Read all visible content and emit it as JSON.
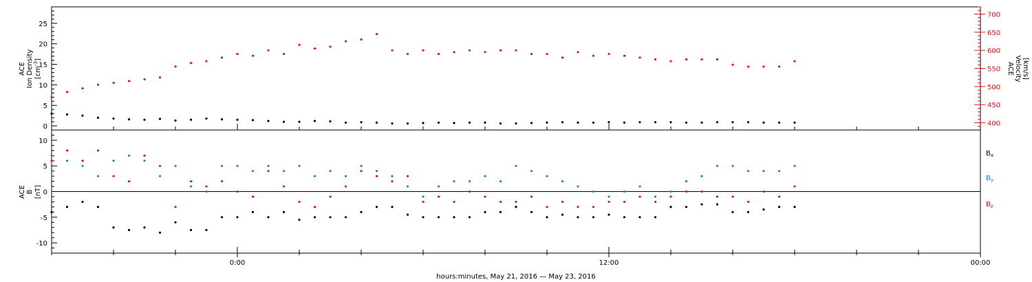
{
  "chart_data": [
    {
      "type": "scatter",
      "panel": "ace-density-velocity",
      "ylabel": [
        "ACE",
        "Ion Density",
        "[cm",
        "]"
      ],
      "ylabel_superscript": "-3",
      "y2label": [
        "ACE",
        "Velocity",
        "[km/s]"
      ],
      "ylim": [
        -1,
        29
      ],
      "y2lim": [
        380,
        720
      ],
      "y_ticks": [
        0,
        5,
        10,
        15,
        20,
        25
      ],
      "y2_ticks": [
        400,
        450,
        500,
        550,
        600,
        650,
        700
      ],
      "series": [
        {
          "axis": "left",
          "color": "#000000",
          "x_hours": [
            -6.0,
            -5.5,
            -5.0,
            -4.5,
            -4.0,
            -3.5,
            -3.0,
            -2.5,
            -2.0,
            -1.5,
            -1.0,
            -0.5,
            0.0,
            0.5,
            1.0,
            1.5,
            2.0,
            2.5,
            3.0,
            3.5,
            4.0,
            4.5,
            5.0,
            5.5,
            6.0,
            6.5,
            7.0,
            7.5,
            8.0,
            8.5,
            9.0,
            9.5,
            10.0,
            10.5,
            11.0,
            11.5,
            12.0,
            12.5,
            13.0,
            13.5,
            14.0,
            14.5,
            15.0,
            15.5,
            16.0,
            16.5,
            17.0,
            17.5,
            18.0
          ],
          "values": [
            3.0,
            2.8,
            2.5,
            2.0,
            1.8,
            1.6,
            1.5,
            1.7,
            1.3,
            1.5,
            1.8,
            1.6,
            1.5,
            1.4,
            1.2,
            1.0,
            1.0,
            1.2,
            1.1,
            0.8,
            0.9,
            0.8,
            0.6,
            0.6,
            0.7,
            0.8,
            0.7,
            0.8,
            0.8,
            0.6,
            0.6,
            0.7,
            0.8,
            0.9,
            0.8,
            0.8,
            0.9,
            0.8,
            0.9,
            0.9,
            0.9,
            0.8,
            0.8,
            0.9,
            0.9,
            0.9,
            0.8,
            0.8,
            0.8
          ]
        },
        {
          "axis": "right",
          "color": "#e8161c",
          "x_hours": [
            -6.0,
            -5.5,
            -5.0,
            -4.5,
            -4.0,
            -3.5,
            -3.0,
            -2.5,
            -2.0,
            -1.5,
            -1.0,
            -0.5,
            0.0,
            0.5,
            1.0,
            1.5,
            2.0,
            2.5,
            3.0,
            3.5,
            4.0,
            4.5,
            5.0,
            5.5,
            6.0,
            6.5,
            7.0,
            7.5,
            8.0,
            8.5,
            9.0,
            9.5,
            10.0,
            10.5,
            11.0,
            11.5,
            12.0,
            12.5,
            13.0,
            13.5,
            14.0,
            14.5,
            15.0,
            15.5,
            16.0,
            16.5,
            17.0,
            17.5,
            18.0
          ],
          "values": [
            470,
            485,
            495,
            505,
            510,
            515,
            520,
            525,
            555,
            565,
            570,
            580,
            590,
            585,
            600,
            590,
            615,
            605,
            610,
            625,
            630,
            645,
            600,
            590,
            600,
            590,
            595,
            600,
            595,
            600,
            600,
            590,
            590,
            580,
            595,
            585,
            590,
            585,
            580,
            575,
            570,
            575,
            575,
            575,
            560,
            555,
            555,
            555,
            570
          ]
        }
      ]
    },
    {
      "type": "scatter",
      "panel": "ace-b-field",
      "ylabel": [
        "ACE",
        "B",
        "[nT]"
      ],
      "ylim": [
        -12,
        12
      ],
      "y_ticks": [
        -10,
        -5,
        0,
        5,
        10
      ],
      "zero_line": 0,
      "series": [
        {
          "name": "Bx",
          "color": "#000000",
          "x_hours": [
            -6.0,
            -5.5,
            -5.0,
            -4.5,
            -4.0,
            -3.5,
            -3.0,
            -2.5,
            -2.0,
            -1.5,
            -1.0,
            -0.5,
            0.0,
            0.5,
            1.0,
            1.5,
            2.0,
            2.5,
            3.0,
            3.5,
            4.0,
            4.5,
            5.0,
            5.5,
            6.0,
            6.5,
            7.0,
            7.5,
            8.0,
            8.5,
            9.0,
            9.5,
            10.0,
            10.5,
            11.0,
            11.5,
            12.0,
            12.5,
            13.0,
            13.5,
            14.0,
            14.5,
            15.0,
            15.5,
            16.0,
            16.5,
            17.0,
            17.5,
            18.0
          ],
          "values": [
            -4,
            -3,
            -2,
            -3,
            -7,
            -7.5,
            -7,
            -8,
            -6,
            -7.5,
            -7.5,
            -5,
            -5,
            -4,
            -5,
            -4,
            -5.5,
            -5,
            -5,
            -5,
            -4,
            -3,
            -3,
            -4.5,
            -5,
            -5,
            -5,
            -5,
            -4,
            -4,
            -3,
            -4,
            -5,
            -4.5,
            -5,
            -5,
            -4.5,
            -5,
            -5,
            -5,
            -3,
            -3,
            -2.5,
            -2.5,
            -4,
            -4,
            -3.5,
            -3,
            -3
          ]
        },
        {
          "name": "By",
          "color": "#1a85db",
          "x_hours": [
            -6.0,
            -5.5,
            -5.0,
            -4.5,
            -4.0,
            -3.5,
            -3.0,
            -2.5,
            -2.0,
            -1.5,
            -1.0,
            -0.5,
            0.0,
            0.5,
            1.0,
            1.5,
            2.0,
            2.5,
            3.0,
            3.5,
            4.0,
            4.5,
            5.0,
            5.5,
            6.0,
            6.5,
            7.0,
            7.5,
            8.0,
            8.5,
            9.0,
            9.5,
            10.0,
            10.5,
            11.0,
            11.5,
            12.0,
            12.5,
            13.0,
            13.5,
            14.0,
            14.5,
            15.0,
            15.5,
            16.0,
            16.5,
            17.0,
            17.5,
            18.0
          ],
          "values": [
            7,
            6,
            5,
            3,
            6,
            7,
            6,
            3,
            5,
            1,
            0,
            5,
            5,
            4,
            5,
            4,
            5,
            3,
            4,
            3,
            5,
            4,
            3,
            1,
            -1,
            1,
            2,
            2,
            3,
            2,
            5,
            4,
            3,
            2,
            1,
            0,
            -1,
            0,
            1,
            -1,
            0,
            2,
            3,
            5,
            5,
            4,
            4,
            4,
            5
          ]
        },
        {
          "name": "Bz",
          "color": "#e8161c",
          "x_hours": [
            -6.0,
            -5.5,
            -5.0,
            -4.5,
            -4.0,
            -3.5,
            -3.0,
            -2.5,
            -2.0,
            -1.5,
            -1.0,
            -0.5,
            0.0,
            0.5,
            1.0,
            1.5,
            2.0,
            2.5,
            3.0,
            3.5,
            4.0,
            4.5,
            5.0,
            5.5,
            6.0,
            6.5,
            7.0,
            7.5,
            8.0,
            8.5,
            9.0,
            9.5,
            10.0,
            10.5,
            11.0,
            11.5,
            12.0,
            12.5,
            13.0,
            13.5,
            14.0,
            14.5,
            15.0,
            15.5,
            16.0,
            16.5,
            17.0,
            17.5,
            18.0
          ],
          "values": [
            6,
            8,
            6,
            8,
            3,
            2,
            7,
            5,
            -3,
            2,
            1,
            2,
            0,
            -1,
            4,
            1,
            -2,
            -3,
            -1,
            1,
            4,
            3,
            2,
            3,
            -2,
            -1,
            -2,
            0,
            -1,
            -2,
            -2,
            -1,
            -3,
            -2,
            -3,
            -3,
            -2,
            -2,
            -1,
            -2,
            -1,
            0,
            0,
            -1,
            -1,
            -2,
            0,
            -1,
            1
          ]
        }
      ],
      "legend": [
        "B",
        "B",
        "B"
      ],
      "legend_subscripts": [
        "x",
        "y",
        "z"
      ],
      "legend_position": "right"
    }
  ],
  "x_axis": {
    "title": "hours:minutes, May 21, 2016 — May 23, 2016",
    "range_hours": [
      -6,
      24
    ],
    "tick_labels": [
      "0:00",
      "12:00",
      "00:00"
    ],
    "tick_hours": [
      0,
      12,
      24
    ]
  }
}
